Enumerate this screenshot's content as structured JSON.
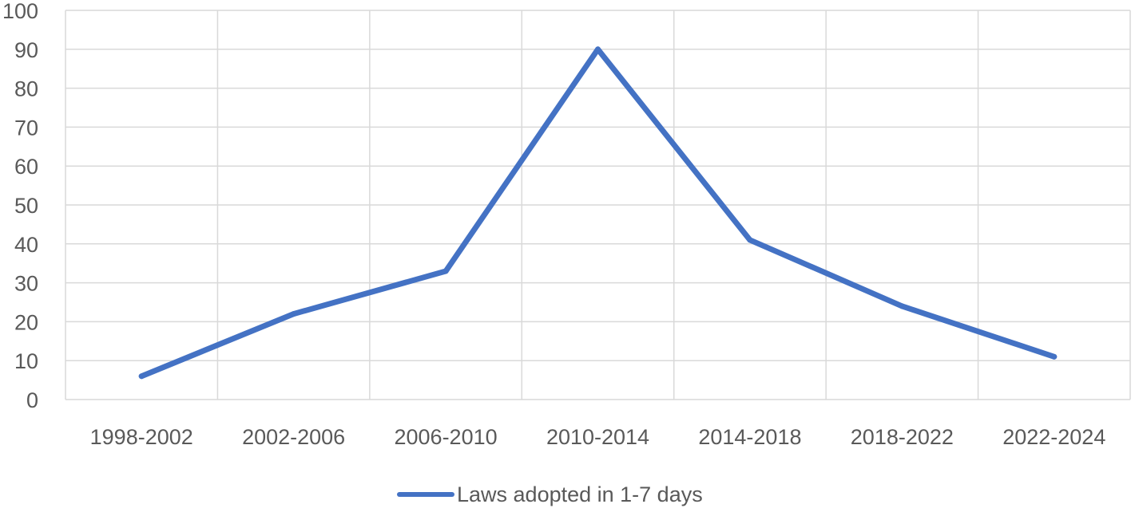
{
  "chart_data": {
    "type": "line",
    "title": "",
    "xlabel": "",
    "ylabel": "",
    "categories": [
      "1998-2002",
      "2002-2006",
      "2006-2010",
      "2010-2014",
      "2014-2018",
      "2018-2022",
      "2022-2024"
    ],
    "series": [
      {
        "name": "Laws adopted in 1-7 days",
        "values": [
          6,
          22,
          33,
          90,
          41,
          24,
          11
        ],
        "color": "#4472c4"
      }
    ],
    "ylim": [
      0,
      100
    ],
    "yticks": [
      0,
      10,
      20,
      30,
      40,
      50,
      60,
      70,
      80,
      90,
      100
    ],
    "grid": {
      "horizontal": true,
      "vertical": true
    },
    "legend": {
      "position": "bottom"
    }
  }
}
